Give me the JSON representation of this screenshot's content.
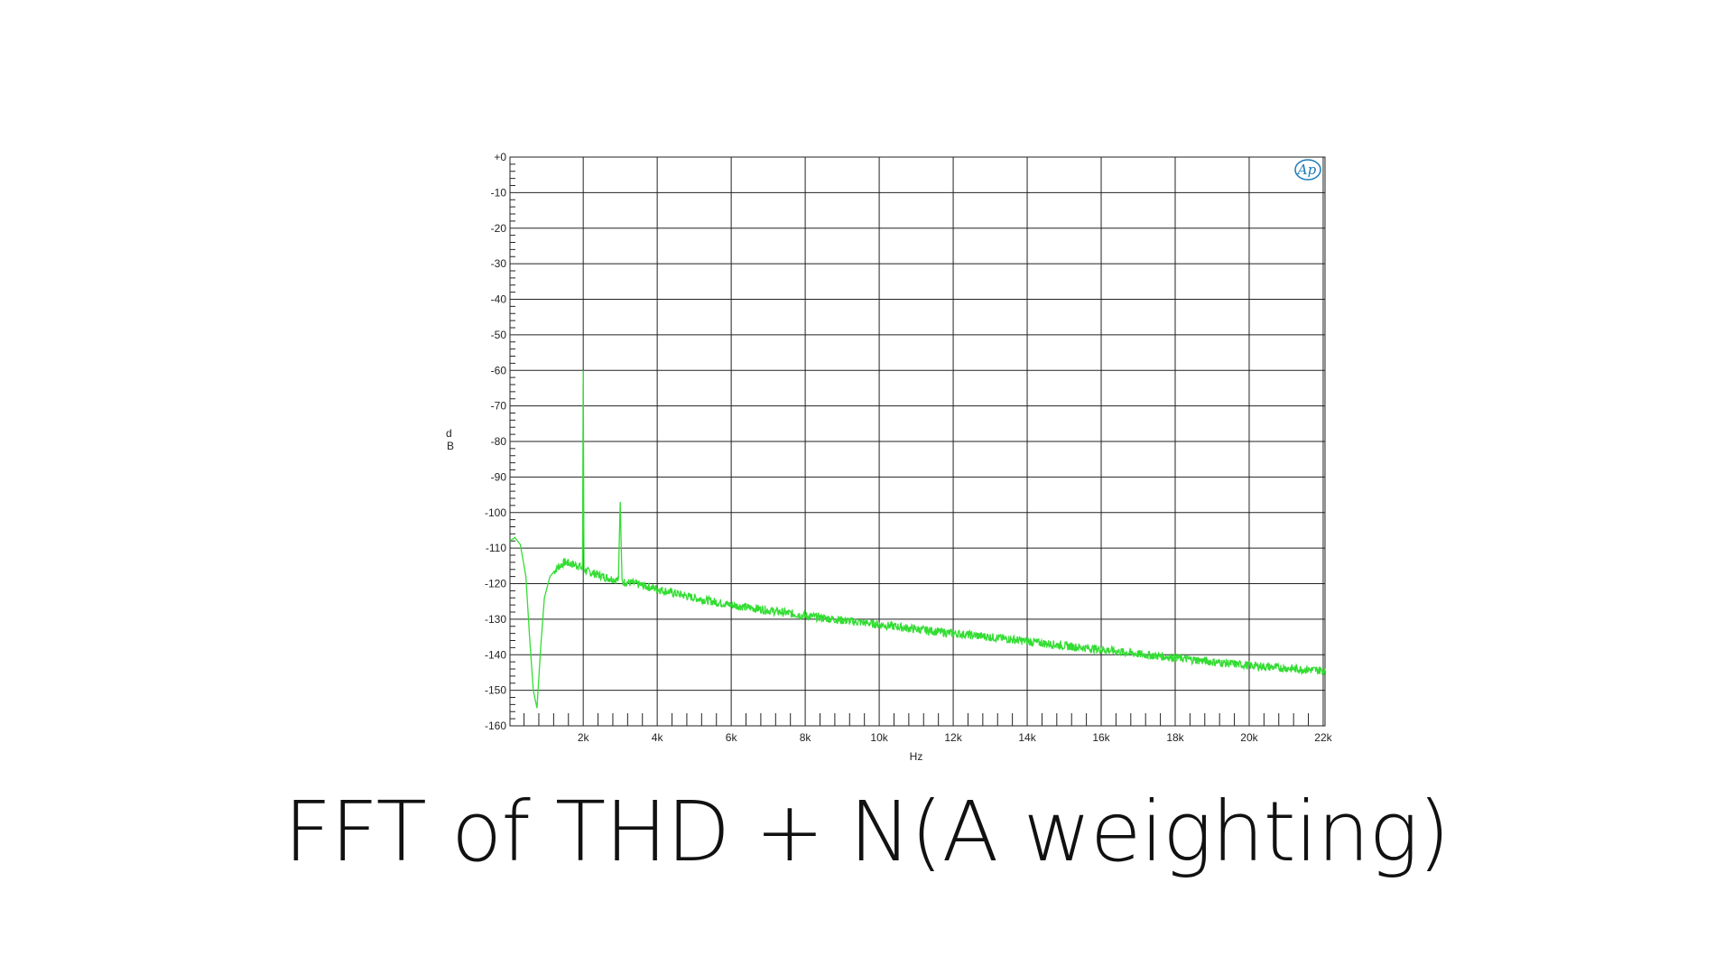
{
  "caption": "FFT of THD + N(A weighting)",
  "logo_text": "Ap",
  "chart_data": {
    "type": "line",
    "title": "",
    "xlabel": "Hz",
    "ylabel": "dB",
    "xlim": [
      20,
      22050
    ],
    "ylim": [
      -160,
      0
    ],
    "grid": true,
    "x_ticks": [
      {
        "value": 2000,
        "label": "2k"
      },
      {
        "value": 4000,
        "label": "4k"
      },
      {
        "value": 6000,
        "label": "6k"
      },
      {
        "value": 8000,
        "label": "8k"
      },
      {
        "value": 10000,
        "label": "10k"
      },
      {
        "value": 12000,
        "label": "12k"
      },
      {
        "value": 14000,
        "label": "14k"
      },
      {
        "value": 16000,
        "label": "16k"
      },
      {
        "value": 18000,
        "label": "18k"
      },
      {
        "value": 20000,
        "label": "20k"
      },
      {
        "value": 22000,
        "label": "22k"
      }
    ],
    "y_ticks": [
      {
        "value": 0,
        "label": "+0"
      },
      {
        "value": -10,
        "label": "-10"
      },
      {
        "value": -20,
        "label": "-20"
      },
      {
        "value": -30,
        "label": "-30"
      },
      {
        "value": -40,
        "label": "-40"
      },
      {
        "value": -50,
        "label": "-50"
      },
      {
        "value": -60,
        "label": "-60"
      },
      {
        "value": -70,
        "label": "-70"
      },
      {
        "value": -80,
        "label": "-80"
      },
      {
        "value": -90,
        "label": "-90"
      },
      {
        "value": -100,
        "label": "-100"
      },
      {
        "value": -110,
        "label": "-110"
      },
      {
        "value": -120,
        "label": "-120"
      },
      {
        "value": -130,
        "label": "-130"
      },
      {
        "value": -140,
        "label": "-140"
      },
      {
        "value": -150,
        "label": "-150"
      },
      {
        "value": -160,
        "label": "-160"
      }
    ],
    "series": [
      {
        "color": "#33dd33",
        "x": [
          20,
          150,
          300,
          450,
          550,
          650,
          750,
          850,
          950,
          1100,
          1300,
          1500,
          1700,
          1900,
          1980,
          2000,
          2020,
          2100,
          2400,
          2700,
          2950,
          3000,
          3050,
          3300,
          3600,
          4000,
          5000,
          6000,
          7000,
          8000,
          9000,
          10000,
          11000,
          12000,
          13000,
          14000,
          15000,
          16000,
          17000,
          18000,
          19000,
          20000,
          21000,
          22050
        ],
        "y": [
          -108,
          -107,
          -109,
          -118,
          -135,
          -150,
          -155,
          -138,
          -124,
          -118,
          -115.5,
          -114,
          -114.5,
          -115,
          -116,
          -60,
          -116,
          -116.5,
          -117.5,
          -118.5,
          -119,
          -97,
          -119.5,
          -119.8,
          -120.5,
          -121.5,
          -124,
          -126,
          -127.5,
          -129,
          -130.3,
          -131.5,
          -132.8,
          -134,
          -135,
          -136.2,
          -137.5,
          -138.5,
          -139.8,
          -140.8,
          -142,
          -143,
          -143.8,
          -144.5
        ]
      }
    ]
  }
}
